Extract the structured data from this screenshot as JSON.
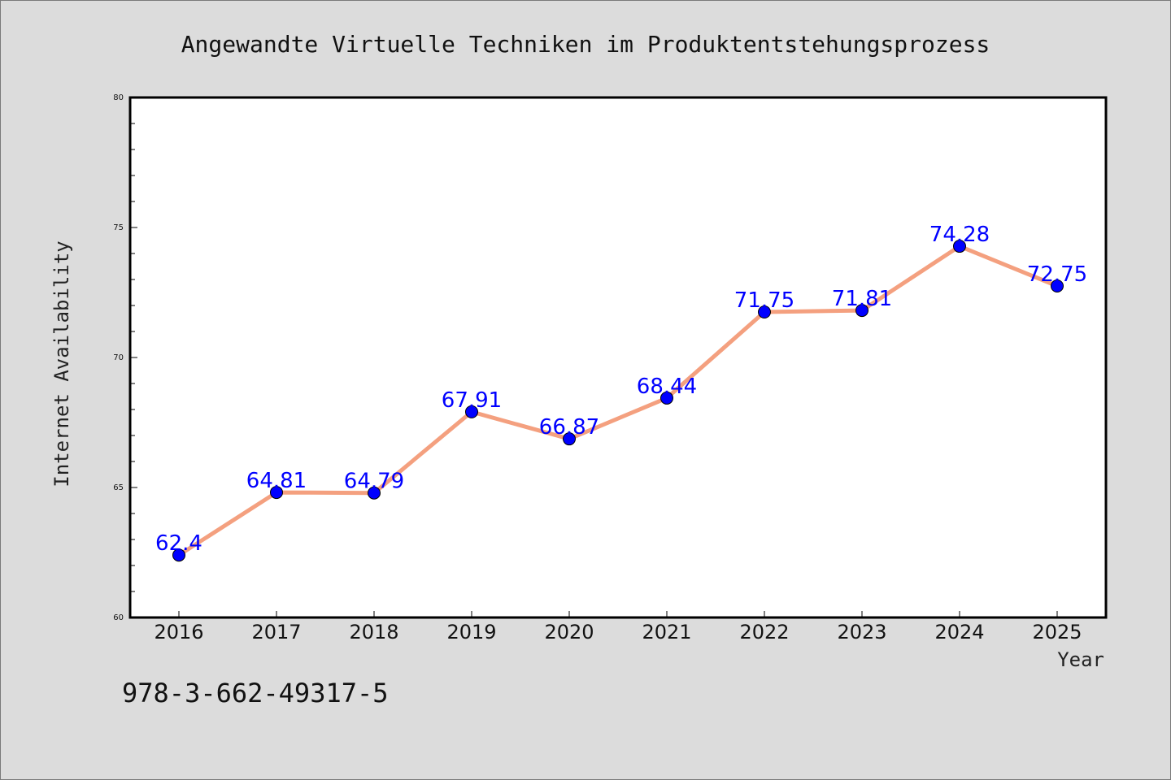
{
  "chart_data": {
    "type": "line",
    "title": "Angewandte Virtuelle Techniken im Produktentstehungsprozess",
    "xlabel": "Year",
    "ylabel": "Internet Availability",
    "categories": [
      "2016",
      "2017",
      "2018",
      "2019",
      "2020",
      "2021",
      "2022",
      "2023",
      "2024",
      "2025"
    ],
    "values": [
      62.4,
      64.81,
      64.79,
      67.91,
      66.87,
      68.44,
      71.75,
      71.81,
      74.28,
      72.75
    ],
    "data_labels": [
      "62.4",
      "64.81",
      "64.79",
      "67.91",
      "66.87",
      "68.44",
      "71.75",
      "71.81",
      "74.28",
      "72.75"
    ],
    "ylim": [
      60,
      80
    ],
    "yticks": [
      "60",
      "65",
      "70",
      "75",
      "80"
    ],
    "grid": false,
    "legend": "none",
    "colors": {
      "line": "#f4a07f",
      "marker": "#0000ff",
      "label": "#0000ff",
      "plot_bg": "#ffffff",
      "figure_bg": "#dcdcdc"
    }
  },
  "footer": {
    "isbn": "978-3-662-49317-5"
  }
}
